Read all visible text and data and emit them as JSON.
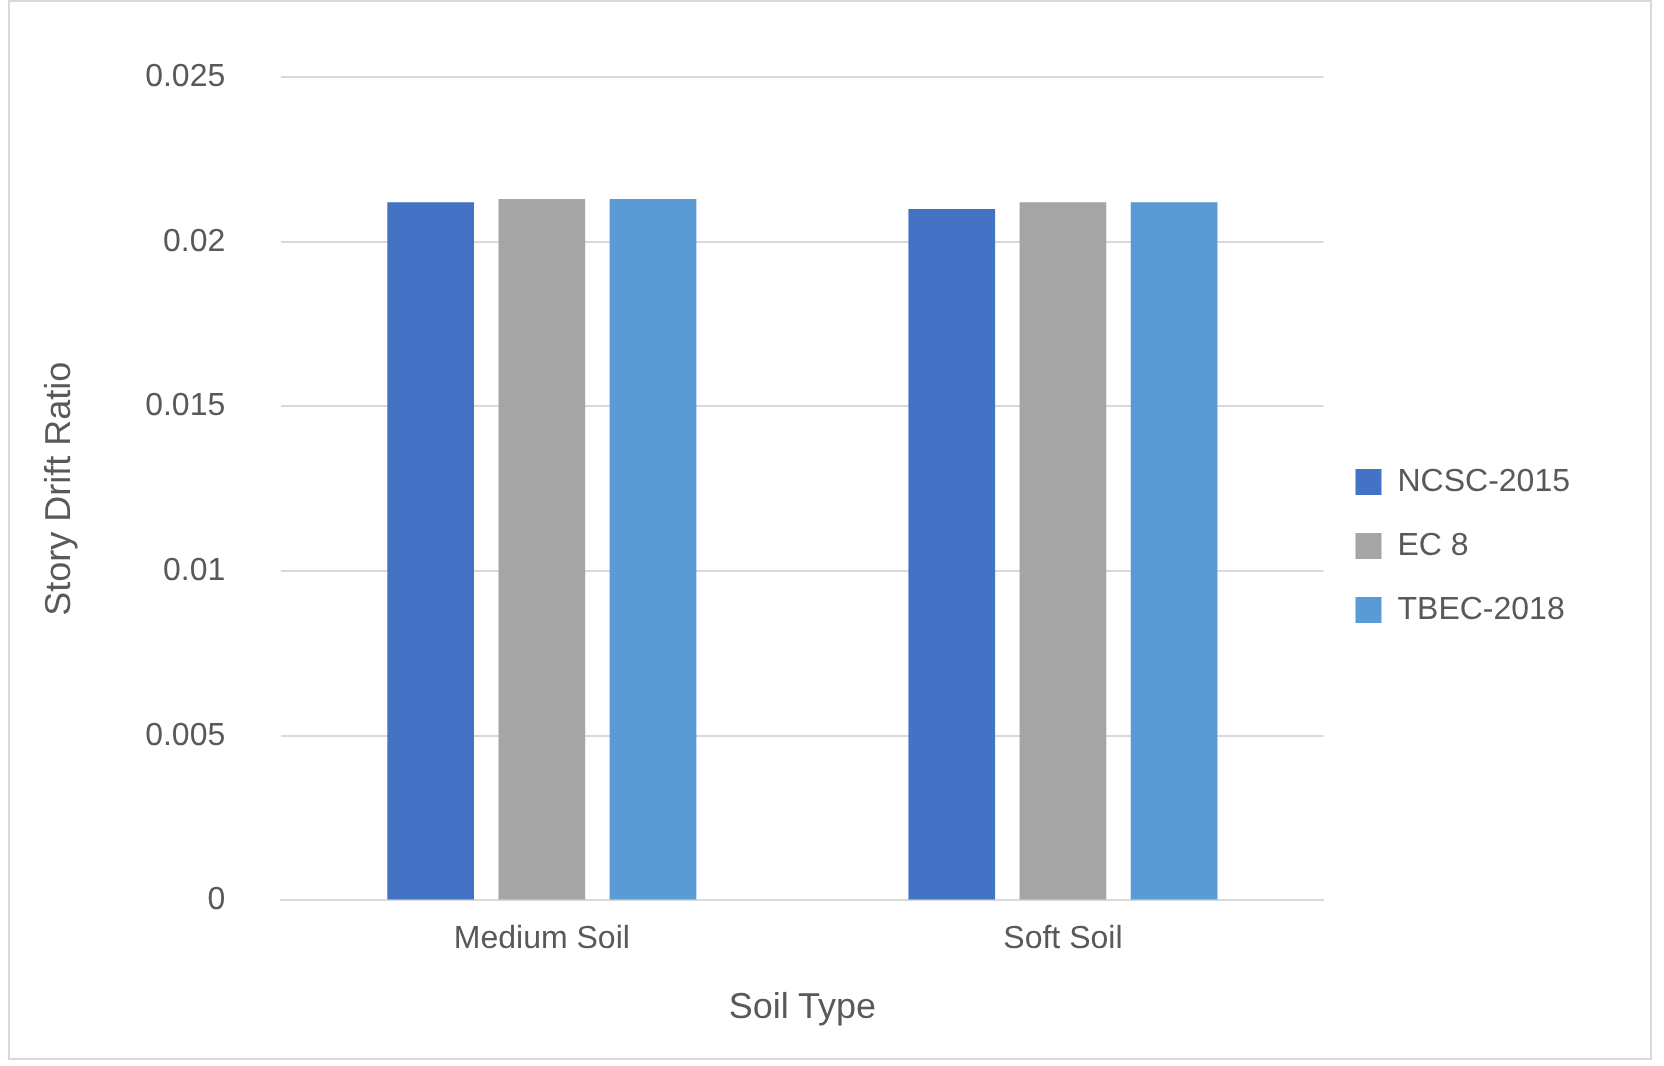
{
  "chart_data": {
    "type": "bar",
    "xlabel": "Soil Type",
    "ylabel": "Story Drift Ratio",
    "categories": [
      "Medium Soil",
      "Soft Soil"
    ],
    "series": [
      {
        "name": "NCSC-2015",
        "color": "#4472c4",
        "values": [
          0.0212,
          0.021
        ]
      },
      {
        "name": "EC 8",
        "color": "#a5a5a5",
        "values": [
          0.0213,
          0.0212
        ]
      },
      {
        "name": "TBEC-2018",
        "color": "#5b9bd5",
        "values": [
          0.0213,
          0.0212
        ]
      }
    ],
    "ylim": [
      0,
      0.025
    ],
    "yticks": [
      0,
      0.005,
      0.01,
      0.015,
      0.02,
      0.025
    ],
    "grid": "y",
    "legend": "right"
  }
}
